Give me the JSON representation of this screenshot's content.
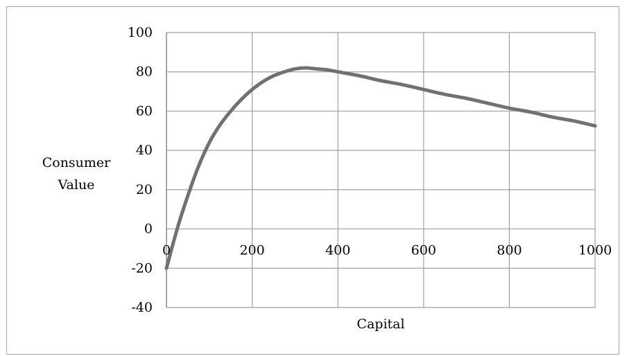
{
  "chart_data": {
    "type": "line",
    "title": "",
    "xlabel": "Capital",
    "ylabel_lines": [
      "Consumer",
      "Value"
    ],
    "xlim": [
      0,
      1000
    ],
    "ylim": [
      -40,
      100
    ],
    "x_ticks": [
      0,
      200,
      400,
      600,
      800,
      1000
    ],
    "y_ticks": [
      100,
      80,
      60,
      40,
      20,
      0,
      -20,
      -40
    ],
    "x_tick_labels": [
      "0",
      "200",
      "400",
      "600",
      "800",
      "1000"
    ],
    "y_tick_labels": [
      "100",
      "80",
      "60",
      "40",
      "20",
      "0",
      "-20",
      "-40"
    ],
    "grid": true,
    "legend": "none",
    "line_color": "#717171",
    "grid_color": "#a0a0a0",
    "series": [
      {
        "x": [
          0,
          25,
          50,
          75,
          100,
          125,
          150,
          175,
          200,
          225,
          250,
          275,
          300,
          325,
          350,
          375,
          400,
          450,
          500,
          550,
          600,
          650,
          700,
          750,
          800,
          850,
          900,
          950,
          1000
        ],
        "values": [
          -20,
          0,
          17,
          32,
          44,
          53,
          60,
          66,
          71,
          75,
          78,
          80,
          81.5,
          82,
          81.5,
          81,
          80,
          78,
          75.5,
          73.5,
          71,
          68.5,
          66.5,
          64,
          61.5,
          59.5,
          57,
          55,
          52.5
        ]
      }
    ]
  }
}
